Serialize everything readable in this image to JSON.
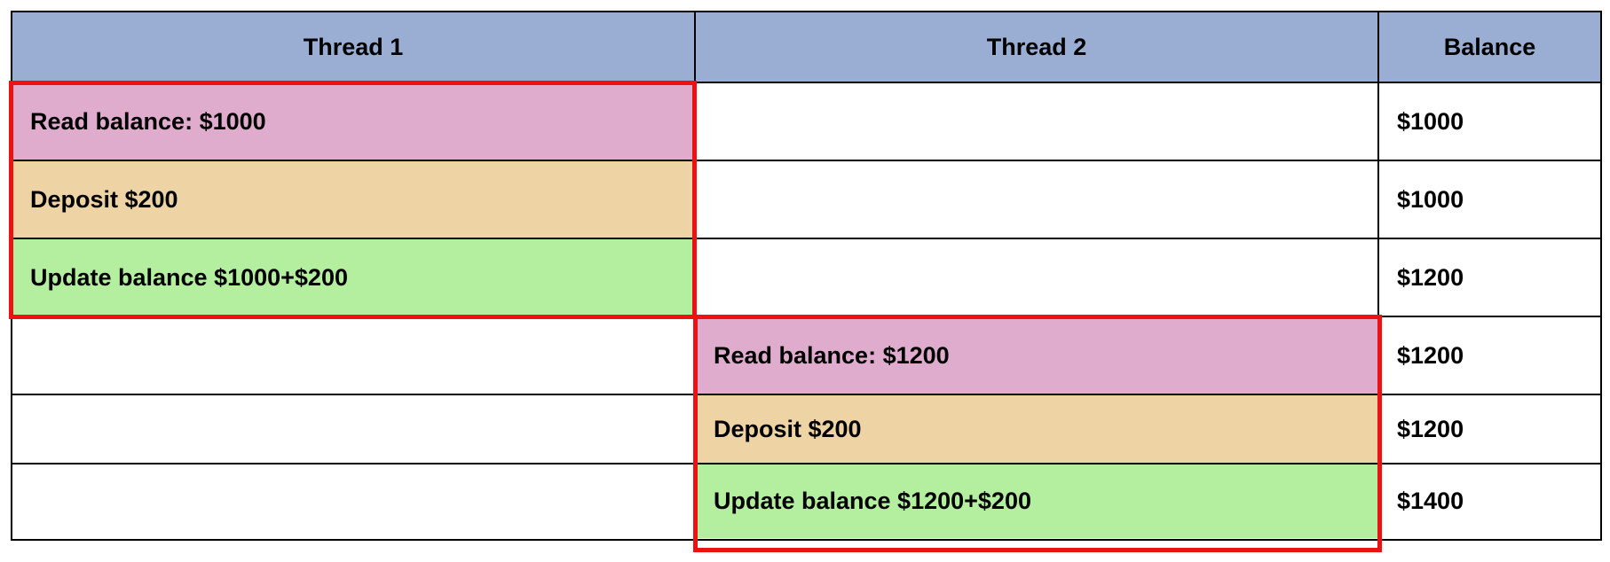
{
  "header": {
    "thread1": "Thread 1",
    "thread2": "Thread 2",
    "balance": "Balance"
  },
  "rows": [
    {
      "thread1": "Read balance: $1000",
      "thread2": "",
      "balance": "$1000"
    },
    {
      "thread1": "Deposit $200",
      "thread2": "",
      "balance": "$1000"
    },
    {
      "thread1": "Update balance $1000+$200",
      "thread2": "",
      "balance": "$1200"
    },
    {
      "thread1": "",
      "thread2": "Read balance: $1200",
      "balance": "$1200"
    },
    {
      "thread1": "",
      "thread2": "Deposit $200",
      "balance": "$1200"
    },
    {
      "thread1": "",
      "thread2": "Update balance $1200+$200",
      "balance": "$1400"
    }
  ],
  "colors": {
    "header": "#9aaed3",
    "read": "#dfacce",
    "deposit": "#eed4a4",
    "update": "#b3ef9f",
    "highlight_border": "#ee1111"
  }
}
